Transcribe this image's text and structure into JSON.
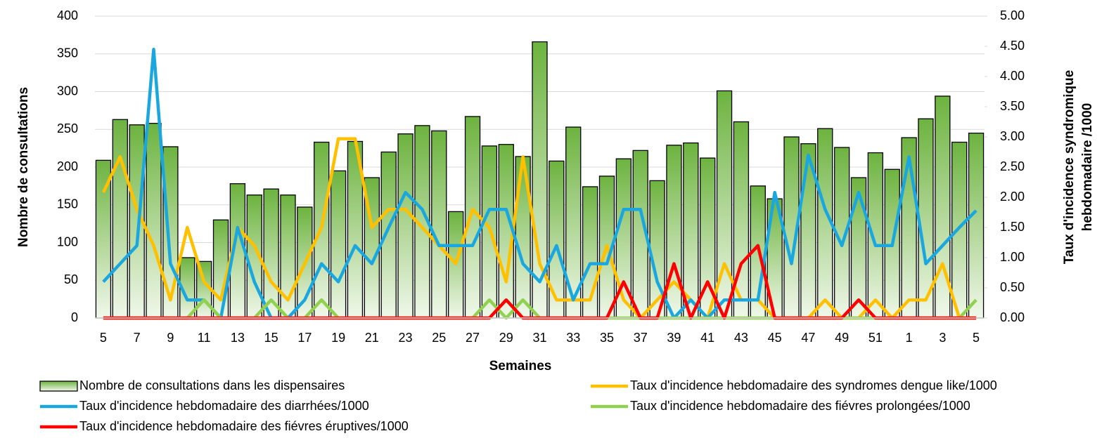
{
  "chart_data": {
    "type": "combo",
    "x_label": "Semaines",
    "y_label": "Nombre de consultations",
    "y2_label": [
      "Taux d'incidence syndromique",
      "hebdomadaire /1000"
    ],
    "categories": [
      5,
      null,
      7,
      null,
      9,
      null,
      11,
      null,
      13,
      null,
      15,
      null,
      17,
      null,
      19,
      null,
      21,
      null,
      23,
      null,
      25,
      null,
      27,
      null,
      29,
      null,
      31,
      null,
      33,
      null,
      35,
      null,
      37,
      null,
      39,
      null,
      41,
      null,
      43,
      null,
      45,
      null,
      47,
      null,
      49,
      null,
      51,
      null,
      1,
      null,
      3,
      null,
      5
    ],
    "ylim": [
      0,
      400
    ],
    "yticks": [
      0,
      50,
      100,
      150,
      200,
      250,
      300,
      350,
      400
    ],
    "y2lim": [
      0,
      5
    ],
    "y2ticks": [
      {
        "value": 0,
        "label": "0.00"
      },
      {
        "value": 0.5,
        "label": "0.50"
      },
      {
        "value": 1,
        "label": "1.00"
      },
      {
        "value": 1.5,
        "label": "1.50"
      },
      {
        "value": 2,
        "label": "2.00"
      },
      {
        "value": 2.5,
        "label": "2.50"
      },
      {
        "value": 3,
        "label": "3.00"
      },
      {
        "value": 3.5,
        "label": "3.50"
      },
      {
        "value": 4,
        "label": "4.00"
      },
      {
        "value": 4.5,
        "label": "4.50"
      },
      {
        "value": 5,
        "label": "5.00"
      }
    ],
    "grid": true,
    "series": [
      {
        "name": "Nombre de consultations dans les dispensaires",
        "type": "bar",
        "color": "#6db33f",
        "values": [
          209,
          263,
          256,
          258,
          227,
          80,
          75,
          130,
          178,
          163,
          171,
          163,
          147,
          233,
          195,
          234,
          186,
          220,
          244,
          255,
          248,
          141,
          267,
          228,
          230,
          214,
          366,
          208,
          253,
          174,
          188,
          211,
          222,
          182,
          229,
          232,
          212,
          301,
          260,
          175,
          158,
          240,
          231,
          251,
          226,
          186,
          219,
          197,
          239,
          264,
          294,
          233,
          245
        ]
      },
      {
        "name": "Taux d'incidence hebdomadaire des syndromes dengue like/1000",
        "type": "line",
        "axis": "y2",
        "color": "#ffc000",
        "values": [
          2.08,
          2.67,
          1.8,
          1.2,
          0.3,
          1.5,
          0.6,
          0.3,
          1.5,
          1.2,
          0.6,
          0.3,
          0.9,
          1.5,
          2.97,
          2.97,
          1.5,
          1.8,
          1.8,
          1.5,
          1.2,
          0.9,
          1.8,
          1.5,
          0.6,
          2.67,
          0.9,
          0.3,
          0.3,
          0.3,
          1.2,
          0.3,
          0,
          0.3,
          0.6,
          0.3,
          0,
          0.9,
          0.3,
          0.3,
          0,
          0,
          0,
          0.3,
          0,
          0,
          0.3,
          0,
          0.3,
          0.3,
          0.9,
          0,
          0
        ]
      },
      {
        "name": "Taux d'incidence hebdomadaire des diarrhées/1000",
        "type": "line",
        "axis": "y2",
        "color": "#1aa7e0",
        "values": [
          0.6,
          0.9,
          1.2,
          4.45,
          0.9,
          0.3,
          0.3,
          0,
          1.5,
          0.6,
          0,
          0,
          0.3,
          0.9,
          0.6,
          1.2,
          0.9,
          1.5,
          2.08,
          1.8,
          1.2,
          1.2,
          1.2,
          1.8,
          1.8,
          0.9,
          0.6,
          1.2,
          0.3,
          0.9,
          0.9,
          1.8,
          1.8,
          0.6,
          0,
          0.3,
          0,
          0.3,
          0.3,
          0.3,
          2.08,
          0.9,
          2.7,
          1.8,
          1.2,
          2.08,
          1.2,
          1.2,
          2.67,
          0.9,
          1.2,
          1.5,
          1.78
        ]
      },
      {
        "name": "Taux d'incidence hebdomadaire des fiévres prolongées/1000",
        "type": "line",
        "axis": "y2",
        "color": "#92d050",
        "values": [
          0,
          0,
          0,
          0,
          0,
          0,
          0.3,
          0,
          0,
          0,
          0.3,
          0,
          0,
          0.3,
          0,
          0,
          0,
          0,
          0,
          0,
          0,
          0,
          0,
          0.3,
          0,
          0.3,
          0,
          0,
          0,
          0,
          0,
          0,
          0,
          0,
          0,
          0,
          0,
          0,
          0,
          0,
          0,
          0,
          0,
          0,
          0,
          0,
          0,
          0,
          0,
          0,
          0,
          0,
          0.3
        ]
      },
      {
        "name": "Taux d'incidence hebdomadaire des fiévres éruptives/1000",
        "type": "line",
        "axis": "y2",
        "color": "#ff0000",
        "values": [
          0,
          0,
          0,
          0,
          0,
          0,
          0,
          0,
          0,
          0,
          0,
          0,
          0,
          0,
          0,
          0,
          0,
          0,
          0,
          0,
          0,
          0,
          0,
          0,
          0.3,
          0,
          0,
          0,
          0,
          0,
          0,
          0.6,
          0,
          0,
          0.9,
          0,
          0.6,
          0,
          0.9,
          1.2,
          0,
          0,
          0,
          0,
          0,
          0.3,
          0,
          0,
          0,
          0,
          0,
          0,
          0
        ]
      }
    ]
  }
}
